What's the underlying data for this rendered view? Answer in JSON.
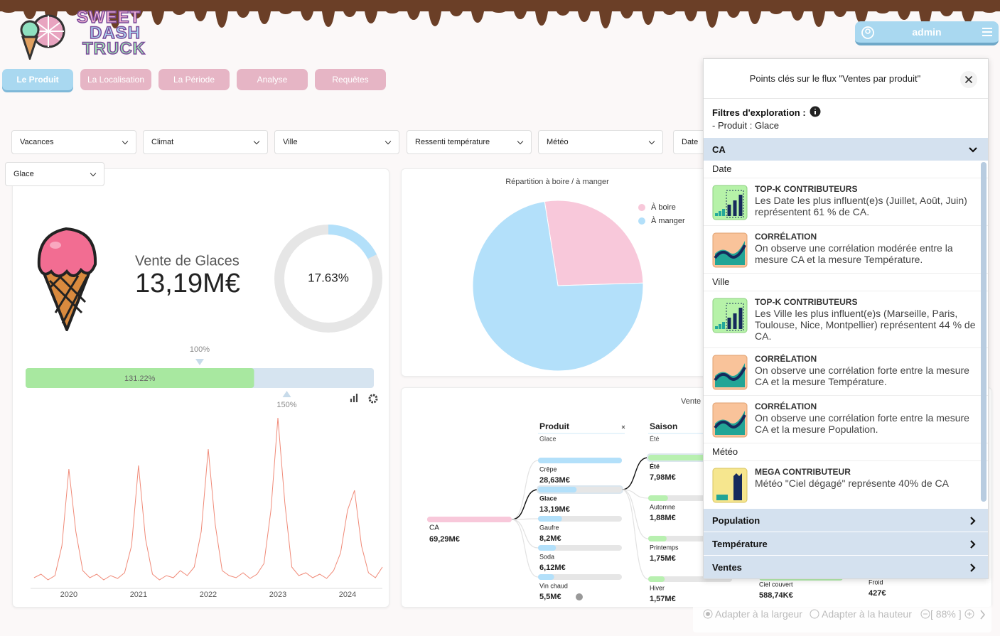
{
  "header": {
    "logo": [
      "SWEET",
      "DASH",
      "TRUCK"
    ],
    "user": "admin"
  },
  "tabs": [
    "Le Produit",
    "La Localisation",
    "La Période",
    "Analyse",
    "Requêtes"
  ],
  "active_tab": "Le Produit",
  "filters": [
    "Vacances",
    "Climat",
    "Ville",
    "Ressenti température",
    "Météo",
    "Date",
    "Glace"
  ],
  "kpi": {
    "title": "Vente de Glaces",
    "value": "13,19M€",
    "share": {
      "value": 17.63,
      "label": "17.63%"
    },
    "gauge": {
      "value": 131.22,
      "label": "131.22%",
      "range": [
        0,
        200
      ],
      "markers": [
        {
          "value": 100,
          "label": "100%"
        },
        {
          "value": 150,
          "label": "150%"
        }
      ]
    }
  },
  "chart_data": [
    {
      "type": "line",
      "color": "#f08a78",
      "x": [
        2019.5,
        2019.6,
        2019.7,
        2019.8,
        2019.9,
        2020.0,
        2020.1,
        2020.2,
        2020.3,
        2020.4,
        2020.5,
        2020.6,
        2020.7,
        2020.8,
        2020.9,
        2021.0,
        2021.1,
        2021.2,
        2021.3,
        2021.4,
        2021.5,
        2021.6,
        2021.7,
        2021.8,
        2021.9,
        2022.0,
        2022.1,
        2022.2,
        2022.3,
        2022.4,
        2022.5,
        2022.6,
        2022.7,
        2022.8,
        2022.9,
        2023.0,
        2023.1,
        2023.2,
        2023.3,
        2023.4,
        2023.5,
        2023.6,
        2023.7,
        2023.8,
        2023.9,
        2024.0,
        2024.1,
        2024.2,
        2024.3,
        2024.4,
        2024.5
      ],
      "values": [
        15,
        20,
        12,
        18,
        60,
        168,
        80,
        25,
        15,
        20,
        12,
        18,
        14,
        22,
        60,
        173,
        70,
        20,
        12,
        18,
        15,
        25,
        18,
        30,
        80,
        196,
        90,
        25,
        18,
        15,
        22,
        14,
        20,
        35,
        110,
        240,
        120,
        30,
        18,
        22,
        15,
        20,
        14,
        25,
        50,
        110,
        138,
        60,
        22,
        15,
        30
      ],
      "xlim": [
        2019.45,
        2024.5
      ],
      "xticks": [
        2020,
        2021,
        2022,
        2023,
        2024
      ],
      "ylim": [
        0,
        250
      ]
    },
    {
      "type": "pie",
      "title": "Répartition à boire / à manger",
      "categories": [
        "À boire",
        "À manger"
      ],
      "values": [
        27,
        73
      ],
      "colors": [
        "#f8c8da",
        "#b3e0fa"
      ]
    }
  ],
  "tree": {
    "title": "Vente",
    "root": {
      "name": "CA",
      "value": 69.29,
      "label": "69,29M€"
    },
    "levels": [
      {
        "name": "Produit",
        "filter": "Glace",
        "nodes": [
          {
            "name": "Crêpe",
            "value": 28.63,
            "label": "28,63M€"
          },
          {
            "name": "Glace",
            "value": 13.19,
            "label": "13,19M€"
          },
          {
            "name": "Gaufre",
            "value": 8.2,
            "label": "8,2M€"
          },
          {
            "name": "Soda",
            "value": 6.12,
            "label": "6,12M€"
          },
          {
            "name": "Vin chaud",
            "value": 5.5,
            "label": "5,5M€"
          }
        ]
      },
      {
        "name": "Saison",
        "filter": "Été",
        "nodes": [
          {
            "name": "Été",
            "value": 7.98,
            "label": "7,98M€"
          },
          {
            "name": "Automne",
            "value": 1.88,
            "label": "1,88M€"
          },
          {
            "name": "Printemps",
            "value": 1.75,
            "label": "1,75M€"
          },
          {
            "name": "Hiver",
            "value": 1.57,
            "label": "1,57M€"
          }
        ]
      }
    ],
    "more": [
      {
        "name": "Ciel couvert",
        "value": 0.58874,
        "label": "588,74K€"
      },
      {
        "name": "Froid",
        "value": 0.000427,
        "label": "427€"
      }
    ]
  },
  "panel": {
    "title": "Points clés sur le flux \"Ventes par produit\"",
    "filters_label": "Filtres d'exploration :",
    "filters": [
      "- Produit : Glace"
    ],
    "sections": [
      {
        "name": "CA",
        "groups": [
          {
            "name": "Date",
            "items": [
              {
                "kind": "TOP-K CONTRIBUTEURS",
                "text": "Les Date les plus influent(e)s (Juillet, Août, Juin) représentent 61 % de CA."
              },
              {
                "kind": "CORRÉLATION",
                "text": "On observe une corrélation modérée entre la mesure CA et la mesure Température."
              }
            ]
          },
          {
            "name": "Ville",
            "items": [
              {
                "kind": "TOP-K CONTRIBUTEURS",
                "text": "Les Ville les plus influent(e)s (Marseille, Paris, Toulouse, Nice, Montpellier) représentent 44 % de CA."
              },
              {
                "kind": "CORRÉLATION",
                "text": "On observe une corrélation forte entre la mesure CA et la mesure Température."
              },
              {
                "kind": "CORRÉLATION",
                "text": "On observe une corrélation forte entre la mesure CA et la mesure Population."
              }
            ]
          },
          {
            "name": "Météo",
            "items": [
              {
                "kind": "MEGA CONTRIBUTEUR",
                "text": "Météo \"Ciel dégagé\" représente 40% de CA"
              }
            ]
          }
        ]
      },
      {
        "name": "Population"
      },
      {
        "name": "Température"
      },
      {
        "name": "Ventes"
      }
    ]
  },
  "zoom": {
    "fit_width": "Adapter à la largeur",
    "fit_height": "Adapter à la hauteur",
    "level": "[ 88% ]"
  }
}
